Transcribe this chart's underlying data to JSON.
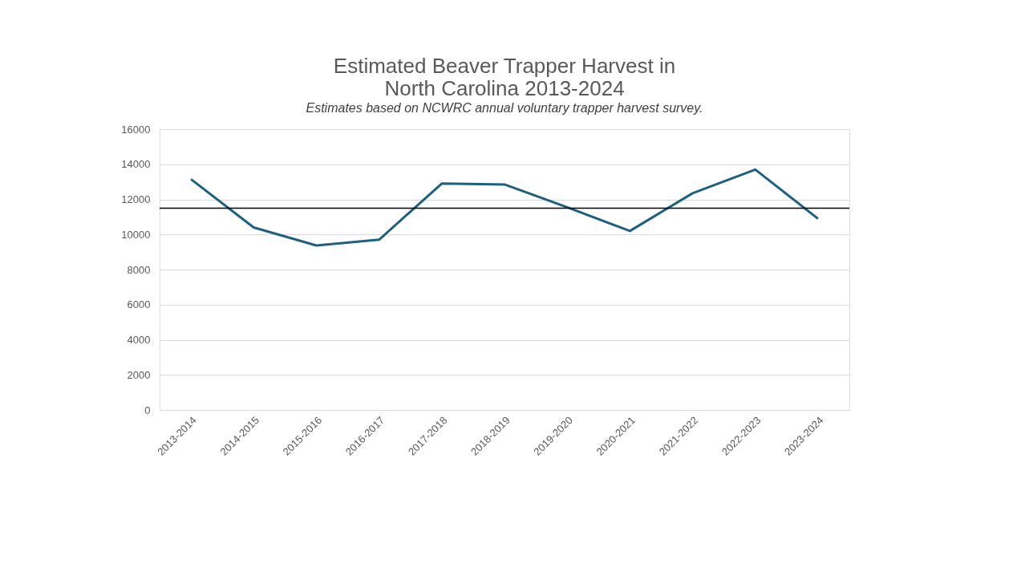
{
  "chart_data": {
    "type": "line",
    "title": [
      "Estimated Beaver Trapper Harvest in",
      "North Carolina 2013-2024"
    ],
    "subtitle": "Estimates based on NCWRC annual voluntary trapper harvest survey.",
    "categories": [
      "2013-2014",
      "2014-2015",
      "2015-2016",
      "2016-2017",
      "2017-2018",
      "2018-2019",
      "2019-2020",
      "2020-2021",
      "2021-2022",
      "2022-2023",
      "2023-2024"
    ],
    "series": [
      {
        "color": "#1f6080",
        "values": [
          13150,
          10400,
          9370,
          9700,
          12900,
          12850,
          11550,
          10200,
          12350,
          13700,
          10900
        ]
      }
    ],
    "ylim": [
      0,
      16000
    ],
    "yticks": [
      0,
      2000,
      4000,
      6000,
      8000,
      10000,
      12000,
      14000,
      16000
    ],
    "ref_lines": [
      {
        "axis": "y",
        "value": 11500,
        "color": "#000000"
      }
    ],
    "grid": "y",
    "marker": "none",
    "line_style": "solid"
  }
}
